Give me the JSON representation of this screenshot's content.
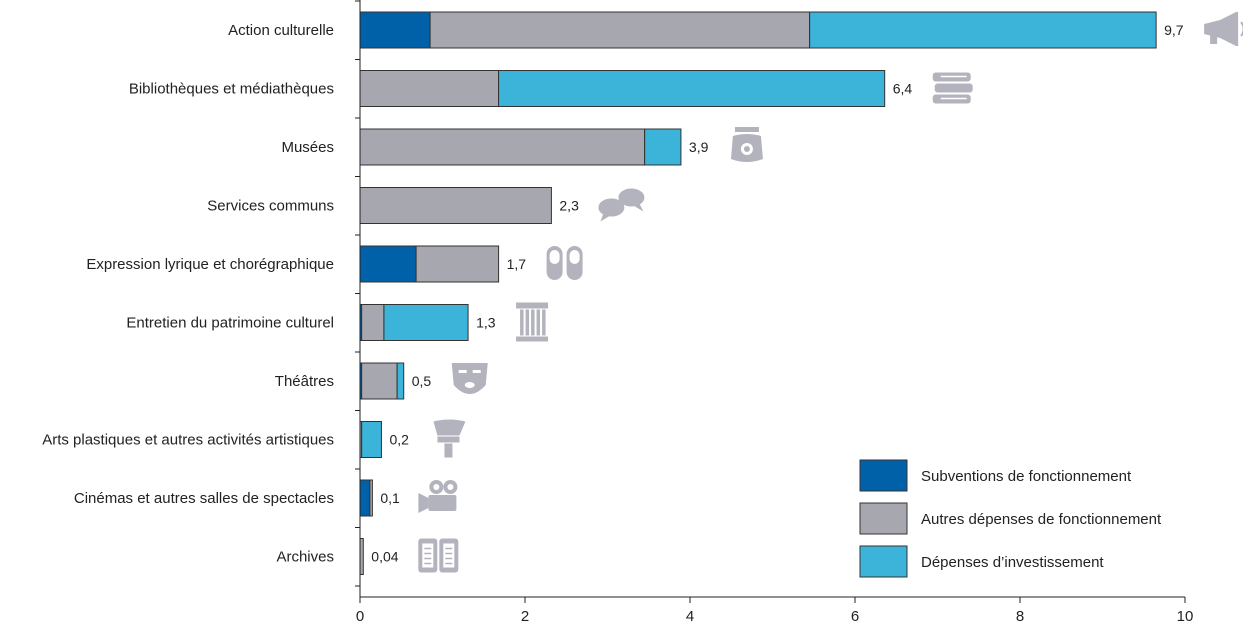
{
  "chart_data": {
    "type": "bar",
    "orientation": "horizontal",
    "stacked": true,
    "categories": [
      "Action culturelle",
      "Bibliothèques et médiathèques",
      "Musées",
      "Services communs",
      "Expression lyrique et chorégraphique",
      "Entretien du patrimoine culturel",
      "Théâtres",
      "Arts plastiques et autres activités artistiques",
      "Cinémas et autres salles de spectacles",
      "Archives"
    ],
    "series": [
      {
        "name": "Subventions de fonctionnement",
        "color": "#0061a8",
        "values": [
          0.85,
          0.0,
          0.0,
          0.0,
          0.68,
          0.02,
          0.02,
          0.0,
          0.12,
          0.0
        ]
      },
      {
        "name": "Autres dépenses de fonctionnement",
        "color": "#a7a7af",
        "values": [
          4.6,
          1.68,
          3.45,
          2.32,
          1.0,
          0.27,
          0.43,
          0.02,
          0.03,
          0.04
        ]
      },
      {
        "name": "Dépenses d’investissement",
        "color": "#3cb3d9",
        "values": [
          4.2,
          4.68,
          0.44,
          0.0,
          0.0,
          1.02,
          0.08,
          0.24,
          0.0,
          0.0
        ]
      }
    ],
    "total_labels": [
      "9,7",
      "6,4",
      "3,9",
      "2,3",
      "1,7",
      "1,3",
      "0,5",
      "0,2",
      "0,1",
      "0,04"
    ],
    "xlim": [
      0,
      10
    ],
    "xticks": [
      "0",
      "2",
      "4",
      "6",
      "8",
      "10"
    ],
    "xlabel": "",
    "ylabel": "",
    "title": "",
    "grid": false,
    "legend_position": "bottom-right",
    "icons": [
      "megaphone-icon",
      "books-icon",
      "museum-vase-icon",
      "speech-bubbles-icon",
      "ballet-shoes-icon",
      "column-icon",
      "theatre-mask-icon",
      "paintbrush-icon",
      "film-camera-icon",
      "archive-book-icon"
    ]
  }
}
